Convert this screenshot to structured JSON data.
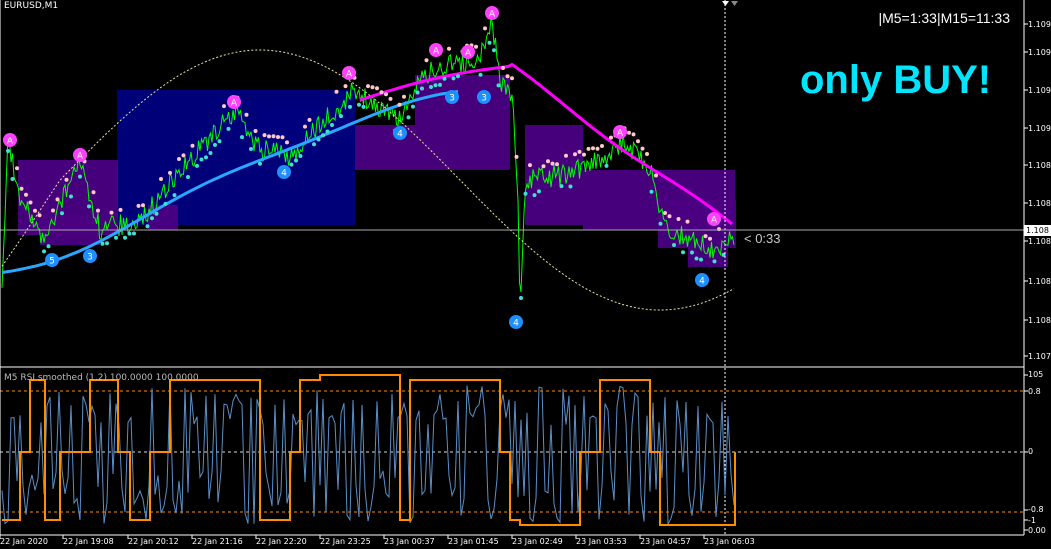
{
  "window": {
    "symbol_label": "EURUSD,M1"
  },
  "header": {
    "timer_text": "|M5=1:33|M15=11:33",
    "signal_text": "only BUY!"
  },
  "price_axis": {
    "labels": [
      "1.109",
      "1.109",
      "1.109",
      "1.109",
      "1.108",
      "1.108",
      "1.108",
      "1.108",
      "1.108",
      "1.107",
      "1.107"
    ],
    "current_price": "1.108",
    "countdown": "< 0:33"
  },
  "indicator": {
    "title": "M5 RSI smoothed (1,2) 100.0000 100.0000",
    "levels": [
      "105",
      "0.8",
      "0",
      "-0.8",
      "-1",
      "0.00"
    ]
  },
  "time_axis": {
    "labels": [
      "22 Jan 2020",
      "22 Jan 19:08",
      "22 Jan 20:12",
      "22 Jan 21:16",
      "22 Jan 22:20",
      "22 Jan 23:25",
      "23 Jan 00:37",
      "23 Jan 01:45",
      "23 Jan 02:49",
      "23 Jan 03:53",
      "23 Jan 04:57",
      "23 Jan 06:03"
    ]
  },
  "markers": {
    "top_letter": "A",
    "bottom_numbers": [
      "5",
      "3",
      "4",
      "4",
      "3",
      "3",
      "4",
      "4"
    ]
  },
  "colors": {
    "price_line": "#00ff00",
    "ma_blue": "#1e90ff",
    "ma_magenta": "#ff00ff",
    "zone_blue": "#000080",
    "zone_purple": "#4b0082",
    "signal_text": "#00e5ff",
    "rsi_orange": "#ff8c00",
    "rsi_blue": "#4682b4"
  }
}
